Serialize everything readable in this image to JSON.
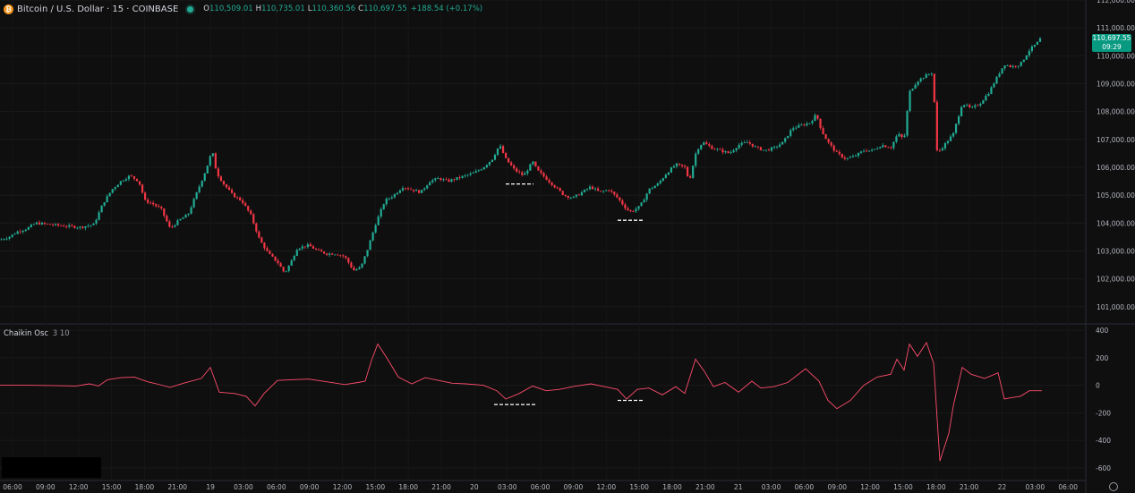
{
  "header": {
    "symbol": "Bitcoin / U.S. Dollar · 15 · COINBASE",
    "symbol_icon": "bitcoin-icon",
    "status_icon": "market-open-dot-icon",
    "open_label": "O",
    "open": "110,509.01",
    "high_label": "H",
    "high": "110,735.01",
    "low_label": "L",
    "low": "110,360.56",
    "close_label": "C",
    "close": "110,697.55",
    "change": "+188.54 (+0.17%)"
  },
  "price_tag": {
    "price": "110,697.55",
    "countdown": "09:29"
  },
  "indicator": {
    "name": "Chaikin Osc",
    "params": "3 10"
  },
  "colors": {
    "up": "#22ab94",
    "down": "#f23645",
    "osc": "#ff4d6d",
    "marker": "#ffffff",
    "tag": "#089981"
  },
  "chart_data": [
    {
      "type": "candlestick",
      "title": "Bitcoin / U.S. Dollar · 15 · COINBASE",
      "yticks": [
        101000,
        102000,
        103000,
        104000,
        105000,
        106000,
        107000,
        108000,
        109000,
        110000,
        111000,
        112000
      ],
      "ytick_labels": [
        "101,000.00",
        "102,000.00",
        "103,000.00",
        "104,000.00",
        "105,000.00",
        "106,000.00",
        "107,000.00",
        "108,000.00",
        "109,000.00",
        "110,000.00",
        "111,000.00",
        "112,000.00"
      ],
      "ylim": [
        100800,
        112000
      ],
      "xtick_labels": [
        "06:00",
        "09:00",
        "12:00",
        "15:00",
        "18:00",
        "21:00",
        "19",
        "03:00",
        "06:00",
        "09:00",
        "12:00",
        "15:00",
        "18:00",
        "21:00",
        "20",
        "03:00",
        "06:00",
        "09:00",
        "12:00",
        "15:00",
        "18:00",
        "21:00",
        "21",
        "03:00",
        "06:00",
        "09:00",
        "12:00",
        "15:00",
        "18:00",
        "21:00",
        "22",
        "03:00",
        "06:00"
      ],
      "close_path": [
        [
          0,
          103400
        ],
        [
          10,
          103500
        ],
        [
          20,
          103700
        ],
        [
          30,
          103800
        ],
        [
          40,
          104000
        ],
        [
          55,
          103950
        ],
        [
          70,
          103900
        ],
        [
          90,
          103850
        ],
        [
          105,
          103950
        ],
        [
          115,
          104700
        ],
        [
          125,
          105200
        ],
        [
          135,
          105500
        ],
        [
          145,
          105700
        ],
        [
          155,
          105500
        ],
        [
          162,
          104800
        ],
        [
          170,
          104700
        ],
        [
          180,
          104500
        ],
        [
          190,
          103800
        ],
        [
          200,
          104100
        ],
        [
          210,
          104300
        ],
        [
          220,
          105100
        ],
        [
          230,
          105900
        ],
        [
          237,
          106600
        ],
        [
          242,
          105800
        ],
        [
          250,
          105400
        ],
        [
          260,
          105000
        ],
        [
          270,
          104800
        ],
        [
          280,
          104300
        ],
        [
          290,
          103400
        ],
        [
          300,
          102900
        ],
        [
          310,
          102600
        ],
        [
          318,
          102200
        ],
        [
          325,
          102600
        ],
        [
          332,
          103100
        ],
        [
          345,
          103200
        ],
        [
          355,
          103000
        ],
        [
          365,
          102900
        ],
        [
          375,
          102900
        ],
        [
          385,
          102800
        ],
        [
          395,
          102300
        ],
        [
          403,
          102400
        ],
        [
          410,
          103000
        ],
        [
          420,
          104000
        ],
        [
          430,
          104800
        ],
        [
          440,
          105000
        ],
        [
          450,
          105300
        ],
        [
          460,
          105200
        ],
        [
          470,
          105100
        ],
        [
          480,
          105500
        ],
        [
          490,
          105600
        ],
        [
          500,
          105500
        ],
        [
          510,
          105600
        ],
        [
          520,
          105700
        ],
        [
          530,
          105800
        ],
        [
          540,
          106000
        ],
        [
          550,
          106300
        ],
        [
          558,
          106800
        ],
        [
          565,
          106300
        ],
        [
          575,
          105900
        ],
        [
          585,
          105700
        ],
        [
          595,
          106200
        ],
        [
          600,
          105900
        ],
        [
          610,
          105600
        ],
        [
          620,
          105300
        ],
        [
          630,
          105000
        ],
        [
          640,
          104900
        ],
        [
          650,
          105100
        ],
        [
          660,
          105300
        ],
        [
          670,
          105100
        ],
        [
          680,
          105200
        ],
        [
          690,
          104900
        ],
        [
          700,
          104500
        ],
        [
          705,
          104400
        ],
        [
          715,
          104600
        ],
        [
          725,
          105200
        ],
        [
          735,
          105400
        ],
        [
          745,
          105800
        ],
        [
          755,
          106100
        ],
        [
          765,
          106000
        ],
        [
          770,
          105500
        ],
        [
          778,
          106600
        ],
        [
          785,
          106900
        ],
        [
          795,
          106700
        ],
        [
          805,
          106600
        ],
        [
          815,
          106500
        ],
        [
          825,
          106800
        ],
        [
          835,
          106900
        ],
        [
          845,
          106700
        ],
        [
          855,
          106600
        ],
        [
          865,
          106700
        ],
        [
          875,
          106900
        ],
        [
          885,
          107400
        ],
        [
          895,
          107500
        ],
        [
          905,
          107600
        ],
        [
          912,
          107900
        ],
        [
          918,
          107300
        ],
        [
          925,
          106900
        ],
        [
          935,
          106500
        ],
        [
          945,
          106300
        ],
        [
          955,
          106400
        ],
        [
          965,
          106600
        ],
        [
          975,
          106600
        ],
        [
          985,
          106800
        ],
        [
          995,
          106700
        ],
        [
          1003,
          107200
        ],
        [
          1010,
          107000
        ],
        [
          1016,
          108700
        ],
        [
          1025,
          109100
        ],
        [
          1035,
          109300
        ],
        [
          1042,
          109400
        ],
        [
          1047,
          106500
        ],
        [
          1055,
          106800
        ],
        [
          1065,
          107200
        ],
        [
          1075,
          108300
        ],
        [
          1085,
          108100
        ],
        [
          1095,
          108300
        ],
        [
          1105,
          108700
        ],
        [
          1115,
          109300
        ],
        [
          1122,
          109700
        ],
        [
          1130,
          109600
        ],
        [
          1140,
          109700
        ],
        [
          1150,
          110200
        ],
        [
          1160,
          110500
        ],
        [
          1164,
          110700
        ]
      ],
      "osc_ticks": [
        400,
        200,
        0,
        -200,
        -400,
        -600
      ],
      "osc_ylim": [
        -640,
        420
      ],
      "osc_path": [
        [
          0,
          0
        ],
        [
          30,
          0
        ],
        [
          60,
          -2
        ],
        [
          85,
          -5
        ],
        [
          100,
          10
        ],
        [
          110,
          -5
        ],
        [
          120,
          40
        ],
        [
          135,
          55
        ],
        [
          150,
          60
        ],
        [
          165,
          25
        ],
        [
          175,
          10
        ],
        [
          190,
          -15
        ],
        [
          205,
          15
        ],
        [
          225,
          50
        ],
        [
          235,
          130
        ],
        [
          245,
          -50
        ],
        [
          262,
          -60
        ],
        [
          275,
          -80
        ],
        [
          285,
          -150
        ],
        [
          295,
          -60
        ],
        [
          310,
          35
        ],
        [
          325,
          40
        ],
        [
          345,
          45
        ],
        [
          365,
          25
        ],
        [
          385,
          5
        ],
        [
          400,
          20
        ],
        [
          408,
          30
        ],
        [
          415,
          180
        ],
        [
          422,
          300
        ],
        [
          432,
          200
        ],
        [
          445,
          60
        ],
        [
          460,
          10
        ],
        [
          475,
          55
        ],
        [
          490,
          35
        ],
        [
          505,
          15
        ],
        [
          520,
          10
        ],
        [
          540,
          0
        ],
        [
          555,
          -40
        ],
        [
          565,
          -100
        ],
        [
          580,
          -60
        ],
        [
          595,
          -5
        ],
        [
          610,
          -40
        ],
        [
          625,
          -30
        ],
        [
          640,
          -10
        ],
        [
          660,
          10
        ],
        [
          675,
          -10
        ],
        [
          690,
          -30
        ],
        [
          700,
          -100
        ],
        [
          712,
          -30
        ],
        [
          725,
          -20
        ],
        [
          740,
          -70
        ],
        [
          755,
          -10
        ],
        [
          765,
          -60
        ],
        [
          777,
          190
        ],
        [
          787,
          100
        ],
        [
          797,
          -10
        ],
        [
          810,
          20
        ],
        [
          825,
          -50
        ],
        [
          840,
          30
        ],
        [
          850,
          -20
        ],
        [
          865,
          -10
        ],
        [
          880,
          20
        ],
        [
          900,
          120
        ],
        [
          915,
          30
        ],
        [
          925,
          -110
        ],
        [
          935,
          -170
        ],
        [
          950,
          -110
        ],
        [
          965,
          0
        ],
        [
          980,
          60
        ],
        [
          995,
          80
        ],
        [
          1002,
          190
        ],
        [
          1010,
          110
        ],
        [
          1016,
          300
        ],
        [
          1025,
          210
        ],
        [
          1035,
          310
        ],
        [
          1043,
          160
        ],
        [
          1050,
          -550
        ],
        [
          1060,
          -350
        ],
        [
          1065,
          -150
        ],
        [
          1075,
          130
        ],
        [
          1085,
          80
        ],
        [
          1100,
          50
        ],
        [
          1115,
          90
        ],
        [
          1122,
          -100
        ],
        [
          1130,
          -90
        ],
        [
          1140,
          -80
        ],
        [
          1150,
          -40
        ],
        [
          1164,
          -40
        ]
      ],
      "support_markers": [
        {
          "pane": "price",
          "x_start": 565,
          "x_end": 596,
          "value": 105400
        },
        {
          "pane": "price",
          "x_start": 690,
          "x_end": 718,
          "value": 104100
        },
        {
          "pane": "osc",
          "x_start": 552,
          "x_end": 598,
          "value": -140
        },
        {
          "pane": "osc",
          "x_start": 690,
          "x_end": 718,
          "value": -110
        }
      ]
    }
  ]
}
